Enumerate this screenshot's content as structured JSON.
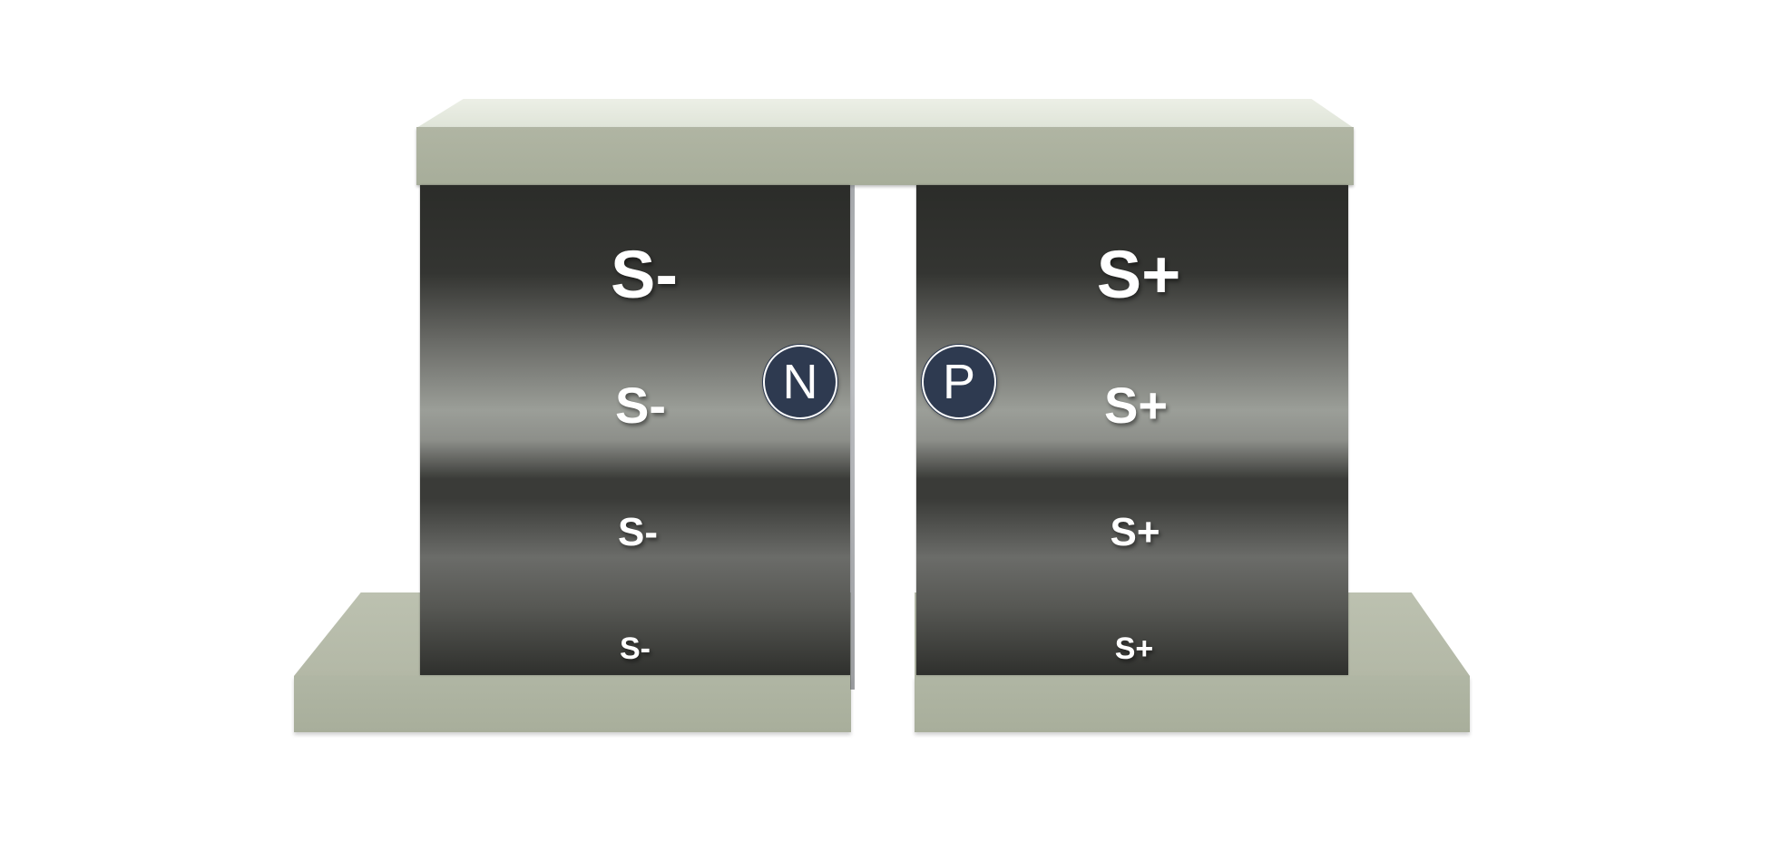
{
  "diagram": {
    "left_magnet": {
      "labels": [
        "S-",
        "S-",
        "S-",
        "S-"
      ],
      "badge": "N"
    },
    "right_magnet": {
      "labels": [
        "S+",
        "S+",
        "S+",
        "S+"
      ],
      "badge": "P"
    },
    "colors": {
      "plate": "#b0b5a3",
      "plate_top": "#ecefe6",
      "magnet_dark": "#2b2c29",
      "magnet_light": "#9b9e98",
      "badge_fill": "#2e3a50",
      "label_text": "#ffffff"
    }
  }
}
